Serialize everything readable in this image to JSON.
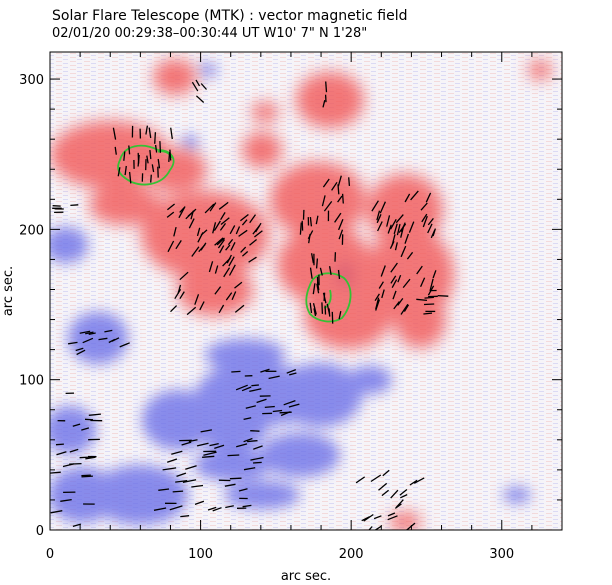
{
  "title": {
    "line1": "Solar Flare Telescope (MTK) : vector magnetic field",
    "line2": "02/01/20   00:29:38–00:30:44 UT      W10' 7\"   N 1'28\""
  },
  "axes": {
    "xlabel": "arc sec.",
    "ylabel": "arc sec.",
    "xlim": [
      0,
      340
    ],
    "ylim": [
      0,
      318
    ],
    "x_major_ticks": [
      0,
      100,
      200,
      300
    ],
    "y_major_ticks": [
      0,
      100,
      200,
      300
    ],
    "x_minor_step": 20,
    "y_minor_step": 20
  },
  "colors": {
    "positive_polarity": "#f05a5a",
    "negative_polarity": "#5f63e6",
    "contour": "#34c234",
    "vector": "#000000",
    "frame": "#000000"
  }
}
